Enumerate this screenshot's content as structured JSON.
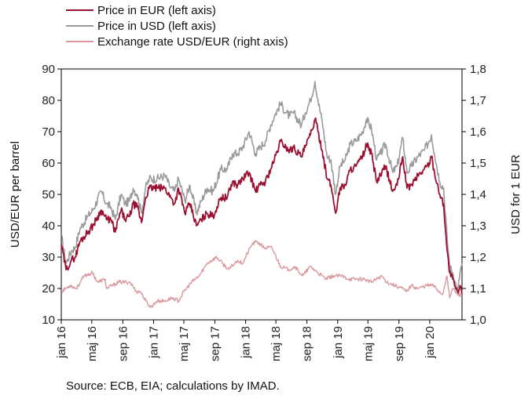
{
  "chart_data": {
    "type": "line",
    "legend_position": "top-left",
    "grid": false,
    "ylabel": "USD/EUR per barrel",
    "y2label": "USD for 1 EUR",
    "ylim": [
      10,
      90
    ],
    "y2lim": [
      1.0,
      1.8
    ],
    "yticks": [
      "10",
      "20",
      "30",
      "40",
      "50",
      "60",
      "70",
      "80",
      "90"
    ],
    "y2ticks": [
      "1,0",
      "1,1",
      "1,2",
      "1,3",
      "1,4",
      "1,5",
      "1,6",
      "1,7",
      "1,8"
    ],
    "xlim": [
      "2016-01",
      "2020-05"
    ],
    "xticks": [
      {
        "label": "jan 16",
        "date": "2016-01"
      },
      {
        "label": "maj 16",
        "date": "2016-05"
      },
      {
        "label": "sep 16",
        "date": "2016-09"
      },
      {
        "label": "jan 17",
        "date": "2017-01"
      },
      {
        "label": "maj 17",
        "date": "2017-05"
      },
      {
        "label": "sep 17",
        "date": "2017-09"
      },
      {
        "label": "jan 18",
        "date": "2018-01"
      },
      {
        "label": "maj 18",
        "date": "2018-05"
      },
      {
        "label": "sep 18",
        "date": "2018-09"
      },
      {
        "label": "jan 19",
        "date": "2019-01"
      },
      {
        "label": "maj 19",
        "date": "2019-05"
      },
      {
        "label": "sep 19",
        "date": "2019-09"
      },
      {
        "label": "jan 20",
        "date": "2020-01"
      }
    ],
    "series": [
      {
        "name": "Price in USD (left axis)",
        "axis": "left",
        "color": "#9a9a9a",
        "points": [
          [
            "2016-01-01",
            37
          ],
          [
            "2016-01-20",
            28
          ],
          [
            "2016-02-10",
            32
          ],
          [
            "2016-02-25",
            33
          ],
          [
            "2016-03-15",
            39
          ],
          [
            "2016-04-15",
            43
          ],
          [
            "2016-05-05",
            45
          ],
          [
            "2016-06-08",
            51
          ],
          [
            "2016-06-28",
            47
          ],
          [
            "2016-07-15",
            46
          ],
          [
            "2016-08-02",
            42
          ],
          [
            "2016-08-25",
            50
          ],
          [
            "2016-09-10",
            47
          ],
          [
            "2016-09-28",
            48
          ],
          [
            "2016-10-12",
            52
          ],
          [
            "2016-10-28",
            50
          ],
          [
            "2016-11-14",
            44
          ],
          [
            "2016-11-30",
            52
          ],
          [
            "2016-12-15",
            55
          ],
          [
            "2017-01-15",
            55
          ],
          [
            "2017-02-15",
            56
          ],
          [
            "2017-03-10",
            52
          ],
          [
            "2017-03-25",
            51
          ],
          [
            "2017-04-10",
            55
          ],
          [
            "2017-05-05",
            48
          ],
          [
            "2017-05-25",
            53
          ],
          [
            "2017-06-20",
            44
          ],
          [
            "2017-07-10",
            48
          ],
          [
            "2017-08-01",
            52
          ],
          [
            "2017-08-25",
            51
          ],
          [
            "2017-09-25",
            58
          ],
          [
            "2017-10-20",
            58
          ],
          [
            "2017-11-10",
            63
          ],
          [
            "2017-11-30",
            63
          ],
          [
            "2017-12-20",
            65
          ],
          [
            "2018-01-15",
            70
          ],
          [
            "2018-02-09",
            63
          ],
          [
            "2018-02-28",
            65
          ],
          [
            "2018-03-20",
            67
          ],
          [
            "2018-04-10",
            72
          ],
          [
            "2018-04-25",
            75
          ],
          [
            "2018-05-20",
            79
          ],
          [
            "2018-06-10",
            76
          ],
          [
            "2018-06-25",
            75
          ],
          [
            "2018-07-10",
            76
          ],
          [
            "2018-08-10",
            72
          ],
          [
            "2018-08-25",
            76
          ],
          [
            "2018-09-15",
            80
          ],
          [
            "2018-10-03",
            86
          ],
          [
            "2018-10-15",
            80
          ],
          [
            "2018-11-01",
            73
          ],
          [
            "2018-11-20",
            62
          ],
          [
            "2018-12-05",
            61
          ],
          [
            "2018-12-24",
            50
          ],
          [
            "2019-01-10",
            59
          ],
          [
            "2019-01-31",
            61
          ],
          [
            "2019-02-20",
            66
          ],
          [
            "2019-03-15",
            67
          ],
          [
            "2019-04-10",
            70
          ],
          [
            "2019-04-25",
            74
          ],
          [
            "2019-05-15",
            71
          ],
          [
            "2019-06-05",
            61
          ],
          [
            "2019-06-20",
            63
          ],
          [
            "2019-07-10",
            66
          ],
          [
            "2019-08-07",
            57
          ],
          [
            "2019-08-25",
            59
          ],
          [
            "2019-09-16",
            68
          ],
          [
            "2019-10-03",
            57
          ],
          [
            "2019-10-20",
            59
          ],
          [
            "2019-11-15",
            62
          ],
          [
            "2019-12-10",
            64
          ],
          [
            "2019-12-30",
            67
          ],
          [
            "2020-01-08",
            69
          ],
          [
            "2020-01-20",
            63
          ],
          [
            "2020-02-10",
            54
          ],
          [
            "2020-02-25",
            52
          ],
          [
            "2020-03-10",
            36
          ],
          [
            "2020-03-20",
            27
          ],
          [
            "2020-04-01",
            25
          ],
          [
            "2020-04-21",
            19
          ],
          [
            "2020-04-30",
            25
          ],
          [
            "2020-05-08",
            28
          ]
        ]
      },
      {
        "name": "Price in EUR (left axis)",
        "axis": "left",
        "color": "#9b1030",
        "points": [
          [
            "2016-01-01",
            34
          ],
          [
            "2016-01-20",
            26
          ],
          [
            "2016-02-10",
            29
          ],
          [
            "2016-02-25",
            30
          ],
          [
            "2016-03-15",
            35
          ],
          [
            "2016-04-15",
            38
          ],
          [
            "2016-05-05",
            40
          ],
          [
            "2016-06-08",
            45
          ],
          [
            "2016-06-28",
            42
          ],
          [
            "2016-07-15",
            42
          ],
          [
            "2016-08-02",
            38
          ],
          [
            "2016-08-25",
            45
          ],
          [
            "2016-09-10",
            42
          ],
          [
            "2016-09-28",
            43
          ],
          [
            "2016-10-12",
            47
          ],
          [
            "2016-10-28",
            46
          ],
          [
            "2016-11-14",
            41
          ],
          [
            "2016-11-30",
            49
          ],
          [
            "2016-12-15",
            52
          ],
          [
            "2017-01-15",
            52
          ],
          [
            "2017-02-15",
            52
          ],
          [
            "2017-03-10",
            49
          ],
          [
            "2017-03-25",
            47
          ],
          [
            "2017-04-10",
            52
          ],
          [
            "2017-05-05",
            44
          ],
          [
            "2017-05-25",
            47
          ],
          [
            "2017-06-20",
            40
          ],
          [
            "2017-07-10",
            42
          ],
          [
            "2017-08-01",
            44
          ],
          [
            "2017-08-25",
            43
          ],
          [
            "2017-09-25",
            49
          ],
          [
            "2017-10-20",
            49
          ],
          [
            "2017-11-10",
            54
          ],
          [
            "2017-11-30",
            53
          ],
          [
            "2017-12-20",
            55
          ],
          [
            "2018-01-15",
            57
          ],
          [
            "2018-02-09",
            51
          ],
          [
            "2018-02-28",
            53
          ],
          [
            "2018-03-20",
            54
          ],
          [
            "2018-04-10",
            58
          ],
          [
            "2018-04-25",
            61
          ],
          [
            "2018-05-20",
            67
          ],
          [
            "2018-06-10",
            65
          ],
          [
            "2018-06-25",
            64
          ],
          [
            "2018-07-10",
            65
          ],
          [
            "2018-08-10",
            62
          ],
          [
            "2018-08-25",
            65
          ],
          [
            "2018-09-15",
            69
          ],
          [
            "2018-10-03",
            74
          ],
          [
            "2018-10-15",
            70
          ],
          [
            "2018-11-01",
            64
          ],
          [
            "2018-11-20",
            55
          ],
          [
            "2018-12-05",
            53
          ],
          [
            "2018-12-24",
            44
          ],
          [
            "2019-01-10",
            52
          ],
          [
            "2019-01-31",
            53
          ],
          [
            "2019-02-20",
            58
          ],
          [
            "2019-03-15",
            59
          ],
          [
            "2019-04-10",
            62
          ],
          [
            "2019-04-25",
            66
          ],
          [
            "2019-05-15",
            63
          ],
          [
            "2019-06-05",
            54
          ],
          [
            "2019-06-20",
            56
          ],
          [
            "2019-07-10",
            59
          ],
          [
            "2019-08-07",
            51
          ],
          [
            "2019-08-25",
            53
          ],
          [
            "2019-09-16",
            62
          ],
          [
            "2019-10-03",
            52
          ],
          [
            "2019-10-20",
            53
          ],
          [
            "2019-11-15",
            56
          ],
          [
            "2019-12-10",
            58
          ],
          [
            "2019-12-30",
            60
          ],
          [
            "2020-01-08",
            62
          ],
          [
            "2020-01-20",
            57
          ],
          [
            "2020-02-10",
            50
          ],
          [
            "2020-02-25",
            47
          ],
          [
            "2020-03-10",
            32
          ],
          [
            "2020-03-20",
            25
          ],
          [
            "2020-04-01",
            23
          ],
          [
            "2020-04-21",
            18
          ],
          [
            "2020-04-30",
            21
          ],
          [
            "2020-05-08",
            18
          ]
        ]
      },
      {
        "name": "Exchange rate USD/EUR (right axis)",
        "axis": "right",
        "color": "#d9999e",
        "points": [
          [
            "2016-01-01",
            1.09
          ],
          [
            "2016-02-05",
            1.11
          ],
          [
            "2016-03-01",
            1.1
          ],
          [
            "2016-04-01",
            1.14
          ],
          [
            "2016-05-03",
            1.15
          ],
          [
            "2016-05-25",
            1.12
          ],
          [
            "2016-06-23",
            1.13
          ],
          [
            "2016-06-28",
            1.1
          ],
          [
            "2016-08-15",
            1.12
          ],
          [
            "2016-09-30",
            1.12
          ],
          [
            "2016-10-25",
            1.09
          ],
          [
            "2016-11-10",
            1.09
          ],
          [
            "2016-12-01",
            1.06
          ],
          [
            "2016-12-20",
            1.04
          ],
          [
            "2017-01-15",
            1.06
          ],
          [
            "2017-02-15",
            1.06
          ],
          [
            "2017-03-15",
            1.07
          ],
          [
            "2017-04-10",
            1.06
          ],
          [
            "2017-05-01",
            1.09
          ],
          [
            "2017-06-01",
            1.12
          ],
          [
            "2017-07-01",
            1.14
          ],
          [
            "2017-08-01",
            1.18
          ],
          [
            "2017-09-08",
            1.2
          ],
          [
            "2017-10-01",
            1.18
          ],
          [
            "2017-10-26",
            1.16
          ],
          [
            "2017-11-30",
            1.19
          ],
          [
            "2017-12-20",
            1.18
          ],
          [
            "2018-01-25",
            1.24
          ],
          [
            "2018-02-15",
            1.25
          ],
          [
            "2018-03-15",
            1.23
          ],
          [
            "2018-04-15",
            1.23
          ],
          [
            "2018-05-20",
            1.17
          ],
          [
            "2018-06-20",
            1.16
          ],
          [
            "2018-07-15",
            1.17
          ],
          [
            "2018-08-15",
            1.14
          ],
          [
            "2018-09-15",
            1.17
          ],
          [
            "2018-10-15",
            1.15
          ],
          [
            "2018-11-15",
            1.13
          ],
          [
            "2018-12-15",
            1.14
          ],
          [
            "2019-01-15",
            1.14
          ],
          [
            "2019-02-15",
            1.13
          ],
          [
            "2019-03-15",
            1.13
          ],
          [
            "2019-04-15",
            1.13
          ],
          [
            "2019-05-15",
            1.12
          ],
          [
            "2019-06-25",
            1.14
          ],
          [
            "2019-07-15",
            1.12
          ],
          [
            "2019-08-15",
            1.11
          ],
          [
            "2019-09-15",
            1.1
          ],
          [
            "2019-10-01",
            1.09
          ],
          [
            "2019-10-20",
            1.11
          ],
          [
            "2019-11-15",
            1.1
          ],
          [
            "2019-12-20",
            1.11
          ],
          [
            "2020-01-15",
            1.11
          ],
          [
            "2020-02-20",
            1.08
          ],
          [
            "2020-03-09",
            1.14
          ],
          [
            "2020-03-20",
            1.07
          ],
          [
            "2020-04-01",
            1.1
          ],
          [
            "2020-04-24",
            1.08
          ],
          [
            "2020-05-08",
            1.08
          ]
        ]
      }
    ],
    "source": "Source: ECB, EIA; calculations by IMAD."
  }
}
